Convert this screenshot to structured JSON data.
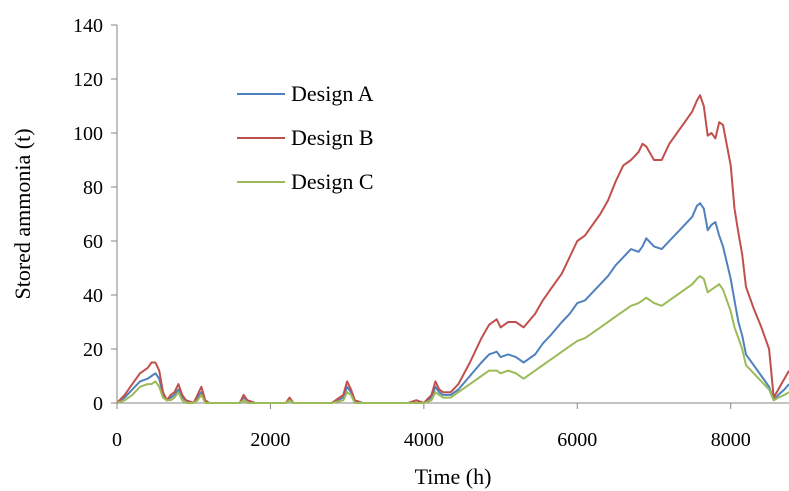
{
  "chart_data": {
    "type": "line",
    "xlabel": "Time (h)",
    "ylabel": "Stored ammonia (t)",
    "xlim": [
      0,
      8760
    ],
    "ylim": [
      0,
      140
    ],
    "xticks": [
      0,
      2000,
      4000,
      6000,
      8000
    ],
    "yticks": [
      0,
      20,
      40,
      60,
      80,
      100,
      120,
      140
    ],
    "grid": false,
    "legend_position": "top-left",
    "series": [
      {
        "name": "Design A",
        "color": "#4f81bd",
        "x": [
          0,
          100,
          200,
          300,
          400,
          450,
          500,
          550,
          600,
          650,
          700,
          750,
          800,
          850,
          900,
          1000,
          1050,
          1100,
          1150,
          1200,
          1300,
          1500,
          1600,
          1650,
          1700,
          1800,
          2000,
          2200,
          2250,
          2300,
          2500,
          2800,
          2950,
          3000,
          3050,
          3100,
          3200,
          3400,
          3600,
          3800,
          3900,
          4000,
          4100,
          4150,
          4200,
          4250,
          4350,
          4450,
          4600,
          4750,
          4850,
          4950,
          5000,
          5100,
          5200,
          5300,
          5450,
          5550,
          5650,
          5800,
          5900,
          6000,
          6100,
          6200,
          6300,
          6400,
          6500,
          6600,
          6700,
          6800,
          6850,
          6900,
          7000,
          7100,
          7200,
          7300,
          7400,
          7500,
          7560,
          7600,
          7650,
          7700,
          7750,
          7800,
          7850,
          7900,
          8000,
          8050,
          8100,
          8150,
          8200,
          8300,
          8400,
          8500,
          8560,
          8620,
          8700,
          8760
        ],
        "y": [
          0,
          2,
          5,
          8,
          9,
          10,
          11,
          9,
          3,
          1,
          2,
          3,
          5,
          2,
          1,
          0,
          2,
          4,
          1,
          0,
          0,
          0,
          0,
          2,
          1,
          0,
          0,
          0,
          1,
          0,
          0,
          0,
          2,
          6,
          4,
          1,
          0,
          0,
          0,
          0,
          1,
          0,
          2,
          6,
          4,
          3,
          3,
          5,
          10,
          15,
          18,
          19,
          17,
          18,
          17,
          15,
          18,
          22,
          25,
          30,
          33,
          37,
          38,
          41,
          44,
          47,
          51,
          54,
          57,
          56,
          58,
          61,
          58,
          57,
          60,
          63,
          66,
          69,
          73,
          74,
          72,
          64,
          66,
          67,
          62,
          58,
          46,
          38,
          30,
          25,
          18,
          14,
          10,
          6,
          1,
          3,
          5,
          7
        ]
      },
      {
        "name": "Design B",
        "color": "#c0504d",
        "x": [
          0,
          100,
          200,
          300,
          400,
          450,
          500,
          550,
          600,
          650,
          700,
          750,
          800,
          850,
          900,
          1000,
          1050,
          1100,
          1150,
          1200,
          1300,
          1500,
          1600,
          1650,
          1700,
          1800,
          2000,
          2200,
          2250,
          2300,
          2500,
          2800,
          2950,
          3000,
          3050,
          3100,
          3200,
          3400,
          3600,
          3800,
          3900,
          4000,
          4100,
          4150,
          4200,
          4250,
          4350,
          4450,
          4600,
          4750,
          4850,
          4950,
          5000,
          5100,
          5200,
          5300,
          5450,
          5550,
          5650,
          5800,
          5900,
          6000,
          6100,
          6200,
          6300,
          6400,
          6500,
          6600,
          6700,
          6800,
          6850,
          6900,
          7000,
          7100,
          7200,
          7300,
          7400,
          7500,
          7560,
          7600,
          7650,
          7700,
          7750,
          7800,
          7850,
          7900,
          8000,
          8050,
          8100,
          8150,
          8200,
          8300,
          8400,
          8500,
          8560,
          8620,
          8700,
          8760
        ],
        "y": [
          0,
          3,
          7,
          11,
          13,
          15,
          15,
          12,
          4,
          1,
          3,
          4,
          7,
          3,
          1,
          0,
          3,
          6,
          1,
          0,
          0,
          0,
          0,
          3,
          1,
          0,
          0,
          0,
          2,
          0,
          0,
          0,
          3,
          8,
          5,
          1,
          0,
          0,
          0,
          0,
          1,
          0,
          3,
          8,
          5,
          4,
          4,
          7,
          15,
          24,
          29,
          31,
          28,
          30,
          30,
          28,
          33,
          38,
          42,
          48,
          54,
          60,
          62,
          66,
          70,
          75,
          82,
          88,
          90,
          93,
          96,
          95,
          90,
          90,
          96,
          100,
          104,
          108,
          112,
          114,
          110,
          99,
          100,
          98,
          104,
          103,
          88,
          72,
          63,
          55,
          43,
          35,
          28,
          20,
          2,
          5,
          9,
          12
        ]
      },
      {
        "name": "Design C",
        "color": "#9bbb59",
        "x": [
          0,
          100,
          200,
          300,
          400,
          450,
          500,
          550,
          600,
          650,
          700,
          750,
          800,
          850,
          900,
          1000,
          1050,
          1100,
          1150,
          1200,
          1300,
          1500,
          1600,
          1650,
          1700,
          1800,
          2000,
          2200,
          2250,
          2300,
          2500,
          2800,
          2950,
          3000,
          3050,
          3100,
          3200,
          3400,
          3600,
          3800,
          3900,
          4000,
          4100,
          4150,
          4200,
          4250,
          4350,
          4450,
          4600,
          4750,
          4850,
          4950,
          5000,
          5100,
          5200,
          5300,
          5450,
          5550,
          5650,
          5800,
          5900,
          6000,
          6100,
          6200,
          6300,
          6400,
          6500,
          6600,
          6700,
          6800,
          6850,
          6900,
          7000,
          7100,
          7200,
          7300,
          7400,
          7500,
          7560,
          7600,
          7650,
          7700,
          7750,
          7800,
          7850,
          7900,
          8000,
          8050,
          8100,
          8150,
          8200,
          8300,
          8400,
          8500,
          8560,
          8620,
          8700,
          8760
        ],
        "y": [
          0,
          1,
          3,
          6,
          7,
          7,
          8,
          6,
          2,
          1,
          1,
          2,
          4,
          1,
          0,
          0,
          1,
          3,
          0,
          0,
          0,
          0,
          0,
          1,
          0,
          0,
          0,
          0,
          1,
          0,
          0,
          0,
          1,
          4,
          3,
          0,
          0,
          0,
          0,
          0,
          0,
          0,
          1,
          4,
          3,
          2,
          2,
          4,
          7,
          10,
          12,
          12,
          11,
          12,
          11,
          9,
          12,
          14,
          16,
          19,
          21,
          23,
          24,
          26,
          28,
          30,
          32,
          34,
          36,
          37,
          38,
          39,
          37,
          36,
          38,
          40,
          42,
          44,
          46,
          47,
          46,
          41,
          42,
          43,
          44,
          42,
          34,
          28,
          24,
          20,
          14,
          11,
          8,
          5,
          1,
          2,
          3,
          4
        ]
      }
    ]
  }
}
